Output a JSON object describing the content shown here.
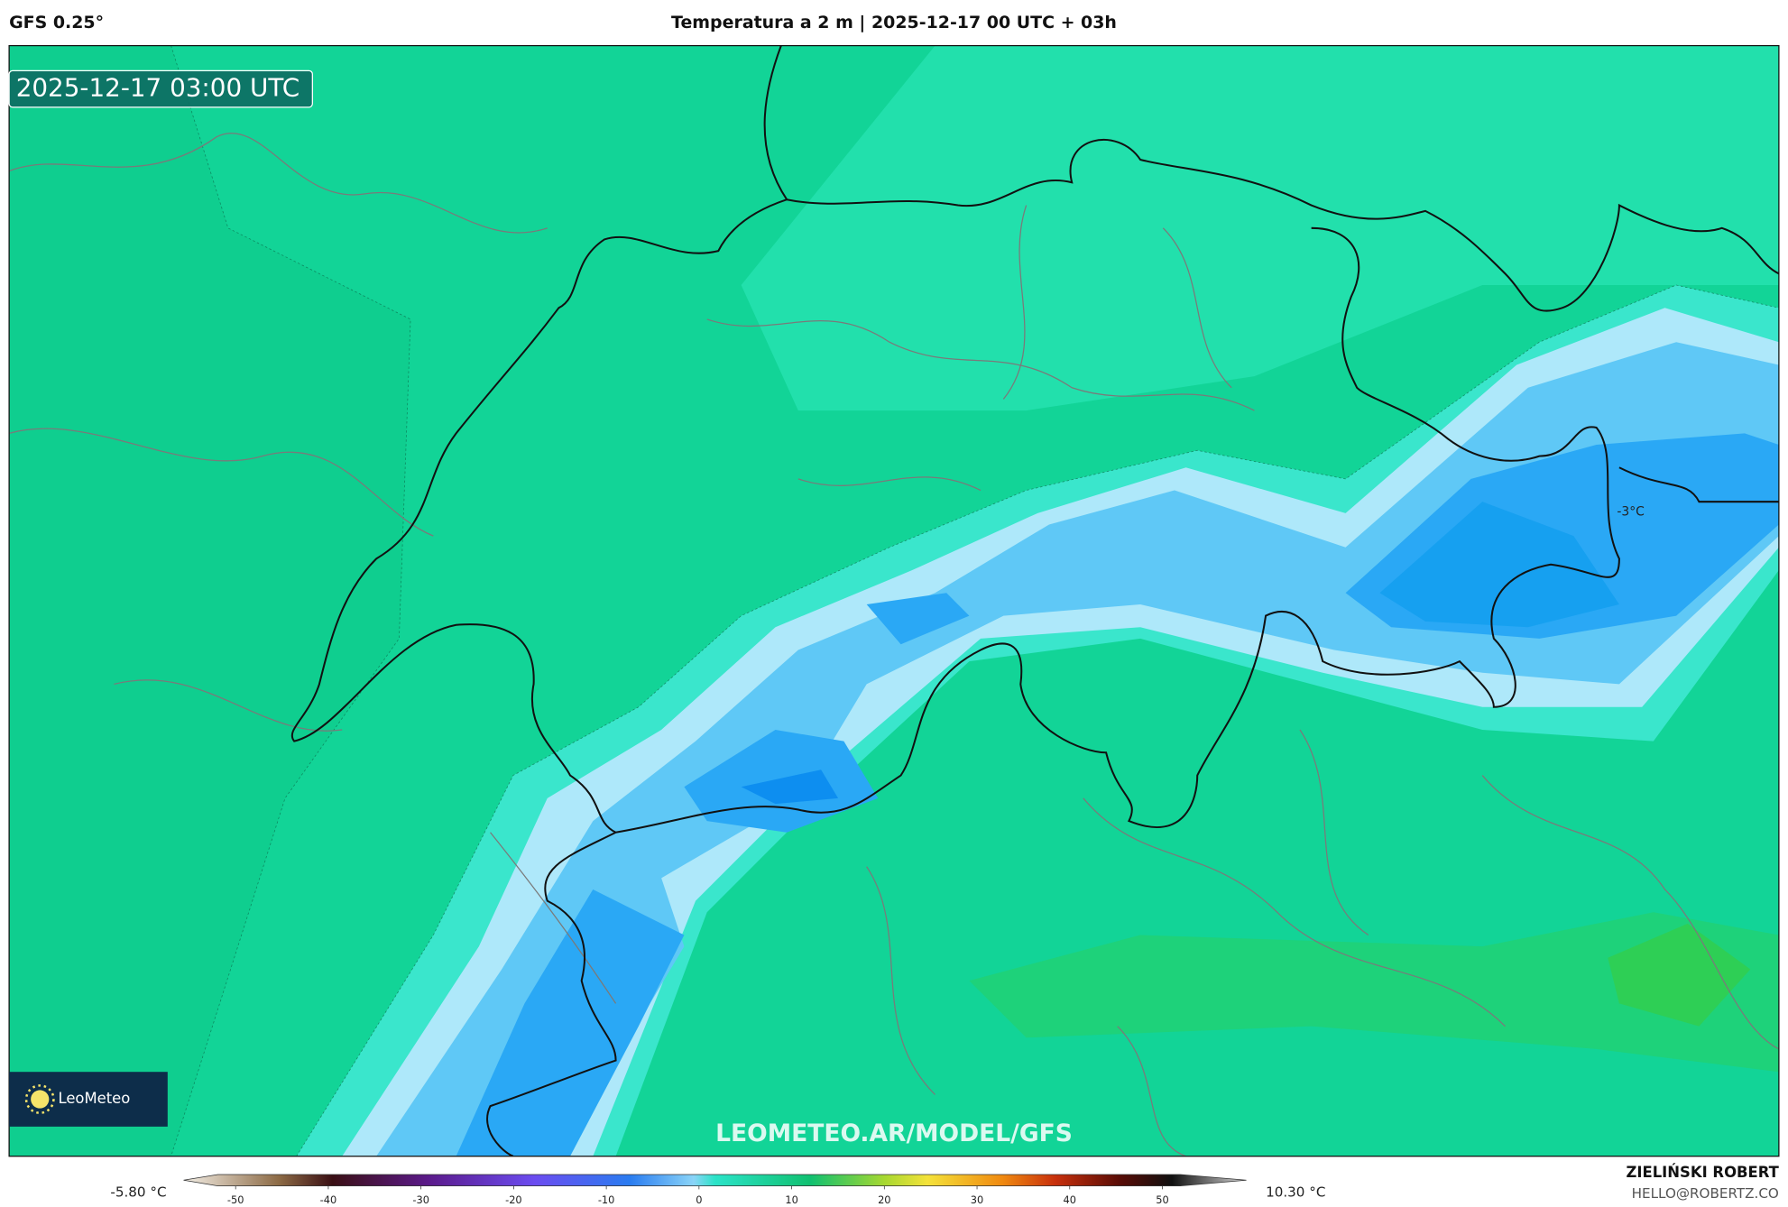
{
  "header": {
    "model": "GFS 0.25°",
    "title": "Temperatura a 2 m | 2025-12-17 00 UTC + 03h"
  },
  "map": {
    "timestamp": "2025-12-17 03:00 UTC",
    "annotation": "-3°C",
    "logo": "LeoMeteo",
    "watermark": "LEOMETEO.AR/MODEL/GFS"
  },
  "colorbar": {
    "min_label": "-5.80 °C",
    "max_label": "10.30 °C",
    "lim": [
      -55,
      55
    ],
    "ticks": [
      -50,
      -40,
      -30,
      -20,
      -10,
      0,
      10,
      20,
      30,
      40,
      50
    ]
  },
  "footer": {
    "author": "ZIELIŃSKI ROBERT",
    "email": "HELLO@ROBERTZ.CO"
  }
}
